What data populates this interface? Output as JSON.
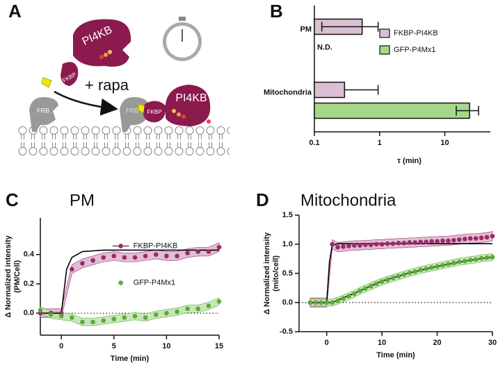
{
  "panel_labels": [
    "A",
    "B",
    "C",
    "D"
  ],
  "diagram": {
    "labels": [
      "PI4KB",
      "FKBP",
      "+ rapa",
      "FRB",
      "FRB",
      "FKBP",
      "PI4KB"
    ]
  },
  "chart_data": [
    {
      "type": "hbar",
      "xlabel": "τ (min)",
      "xscale": "log",
      "xlim": [
        0.1,
        50
      ],
      "xticks": [
        0.1,
        1,
        10
      ],
      "categories": [
        "PM",
        "Mitochondria"
      ],
      "legend": "upper right",
      "series": [
        {
          "name": "FKBP-PI4KB",
          "color": "#dcbfd2",
          "values": [
            0.54,
            0.29
          ],
          "errors": [
            0.41,
            0.66
          ]
        },
        {
          "name": "GFP-P4Mx1",
          "color": "#a6d88a",
          "values": [
            null,
            24
          ],
          "errors": [
            null,
            9
          ],
          "missing_label": "N.D."
        }
      ]
    },
    {
      "type": "line",
      "title": "PM",
      "xlabel": "Time (min)",
      "ylabel": [
        "Δ Normalized intensity",
        "(PM/Cell)"
      ],
      "xlim": [
        -2,
        15
      ],
      "xticks": [
        0,
        5,
        10,
        15
      ],
      "ylim": [
        -0.15,
        0.65
      ],
      "yticks": [
        {
          "value": 0,
          "label": "0.0"
        },
        0.2,
        0.4
      ],
      "reference_line": 0,
      "legend": "center",
      "x": [
        -2,
        -1,
        0,
        1,
        2,
        3,
        4,
        5,
        6,
        7,
        8,
        9,
        10,
        11,
        12,
        13,
        14,
        15
      ],
      "series": [
        {
          "name": "FKBP-PI4KB",
          "color": "#9b2a6a",
          "band_color": "#dcb3cc",
          "style": "points",
          "legend_symbol": "line-dot",
          "band": 0.03,
          "values": [
            0.0,
            0.0,
            0.0,
            0.3,
            0.34,
            0.36,
            0.38,
            0.39,
            0.38,
            0.38,
            0.39,
            0.4,
            0.39,
            0.39,
            0.41,
            0.42,
            0.42,
            0.45
          ]
        },
        {
          "name": "GFP-P4Mx1",
          "color": "#5aab3a",
          "band_color": "#bfe3ad",
          "style": "points",
          "legend_symbol": "dot",
          "band": 0.025,
          "values": [
            0.02,
            -0.01,
            -0.02,
            -0.03,
            -0.06,
            -0.06,
            -0.05,
            -0.04,
            -0.03,
            -0.02,
            -0.03,
            -0.01,
            0.0,
            0.01,
            0.03,
            0.03,
            0.05,
            0.08
          ]
        },
        {
          "color": "#000000",
          "style": "line",
          "x": [
            -2,
            0,
            0.5,
            1,
            2,
            4,
            15
          ],
          "values": [
            0,
            0,
            0.3,
            0.38,
            0.42,
            0.43,
            0.43
          ]
        }
      ]
    },
    {
      "type": "line",
      "title": "Mitochondria",
      "xlabel": "Time (min)",
      "ylabel": [
        "Δ Normalized intensity",
        "(mito/cell)"
      ],
      "xlim": [
        -5,
        30
      ],
      "xticks": [
        0,
        10,
        20,
        30
      ],
      "ylim": [
        -0.5,
        1.5
      ],
      "yticks": [
        -0.5,
        {
          "value": 0,
          "label": "0.0"
        },
        0.5,
        {
          "value": 1,
          "label": "1.0"
        },
        1.5
      ],
      "reference_line": 0,
      "x": [
        -3,
        -2,
        -1,
        0,
        1,
        2,
        3,
        4,
        5,
        6,
        7,
        8,
        9,
        10,
        11,
        12,
        13,
        14,
        15,
        16,
        17,
        18,
        19,
        20,
        21,
        22,
        23,
        24,
        25,
        26,
        27,
        28,
        29,
        30
      ],
      "series": [
        {
          "name": "FKBP-PI4KB",
          "color": "#9b2a6a",
          "band_color": "#dcb3cc",
          "style": "points",
          "band": 0.08,
          "values": [
            0,
            0,
            0,
            0,
            1.0,
            0.95,
            0.96,
            0.97,
            0.98,
            0.98,
            0.99,
            0.99,
            1.0,
            1.0,
            1.01,
            1.01,
            1.02,
            1.02,
            1.03,
            1.03,
            1.04,
            1.04,
            1.05,
            1.05,
            1.06,
            1.06,
            1.07,
            1.08,
            1.09,
            1.1,
            1.1,
            1.11,
            1.12,
            1.14
          ]
        },
        {
          "name": "GFP-P4Mx1",
          "color": "#5aab3a",
          "band_color": "#bfe3ad",
          "style": "points",
          "band": 0.06,
          "values": [
            0,
            0,
            0,
            0,
            0.0,
            0.03,
            0.07,
            0.11,
            0.15,
            0.2,
            0.24,
            0.28,
            0.32,
            0.36,
            0.39,
            0.42,
            0.45,
            0.48,
            0.51,
            0.53,
            0.56,
            0.58,
            0.6,
            0.62,
            0.64,
            0.66,
            0.68,
            0.7,
            0.71,
            0.73,
            0.74,
            0.76,
            0.77,
            0.78
          ]
        },
        {
          "color": "#000000",
          "style": "line",
          "x": [
            -3,
            0,
            0.5,
            1,
            2,
            30
          ],
          "values": [
            0,
            0,
            0.7,
            0.98,
            1.01,
            1.01
          ]
        },
        {
          "color": "#000000",
          "style": "line",
          "x": [
            -3,
            1,
            5,
            10,
            15,
            20,
            25,
            30
          ],
          "values": [
            0,
            0,
            0.16,
            0.37,
            0.51,
            0.62,
            0.71,
            0.78
          ]
        }
      ]
    }
  ]
}
